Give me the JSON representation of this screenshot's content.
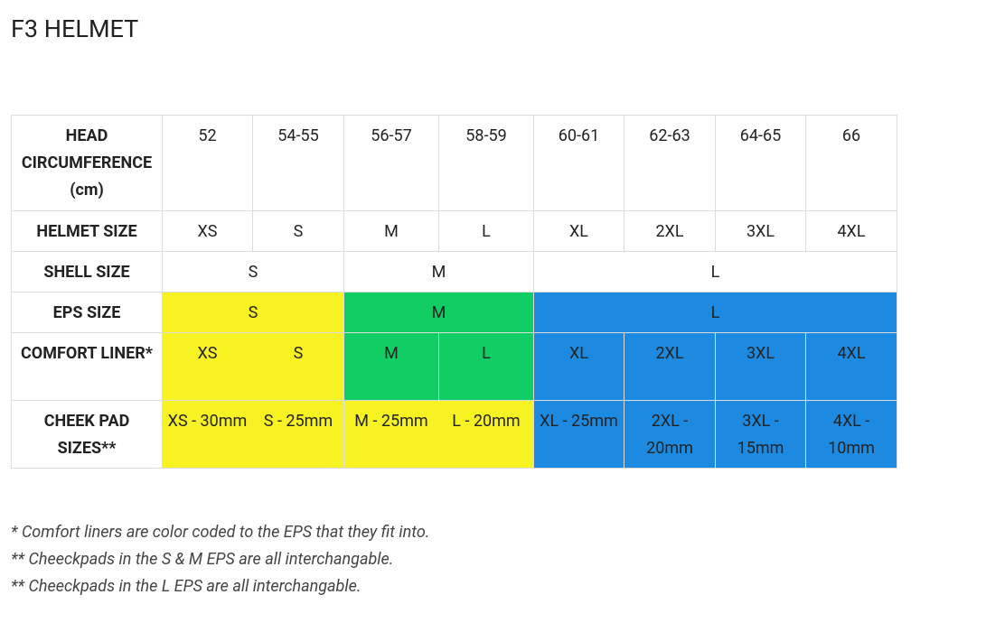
{
  "title": "F3 HELMET",
  "table": {
    "rows": [
      [
        "HEAD CIRCUMFERENCE (cm)",
        "52",
        "54-55",
        "56-57",
        "58-59",
        "60-61",
        "62-63",
        "64-65",
        "66"
      ],
      [
        "HELMET SIZE",
        "XS",
        "S",
        "M",
        "L",
        "XL",
        "2XL",
        "3XL",
        "4XL"
      ],
      [
        "SHELL SIZE",
        "S",
        "M",
        "L"
      ],
      [
        "EPS SIZE",
        "S",
        "M",
        "L"
      ],
      [
        "COMFORT LINER*",
        "XS",
        "S",
        "M",
        "L",
        "XL",
        "2XL",
        "3XL",
        "4XL"
      ],
      [
        "CHEEK PAD SIZES**",
        "XS - 30mm",
        "S - 25mm",
        "M - 25mm",
        "L - 20mm",
        "XL - 25mm",
        "2XL - 20mm",
        "3XL - 15mm",
        "4XL - 10mm"
      ]
    ]
  },
  "notes": [
    "* Comfort liners are color coded to the EPS that they fit into.",
    "** Cheeckpads in the S & M EPS are all interchangable.",
    "** Cheeckpads in the L EPS are all interchangable."
  ]
}
